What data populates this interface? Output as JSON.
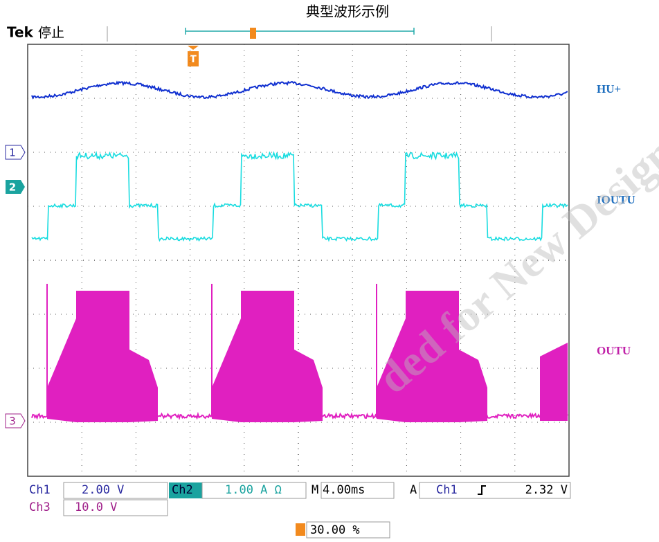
{
  "header": {
    "title": "典型波形示例",
    "brand": "Tek",
    "state": "停止"
  },
  "channel_markers": [
    "1",
    "2",
    "3"
  ],
  "channel_labels": [
    "HU+",
    "IOUTU",
    "OUTU"
  ],
  "status": {
    "ch1": "Ch1",
    "ch1_scale": "2.00 V",
    "ch2": "Ch2",
    "ch2_scale": "1.00 A Ω",
    "timebase_prefix": "M",
    "timebase": "4.00ms",
    "trigger_mode": "A",
    "trigger_source": "Ch1",
    "trigger_level": "2.32 V",
    "ch3": "Ch3",
    "ch3_scale": "10.0 V",
    "trigger_marker": "T",
    "trigger_position": "30.00 %"
  },
  "watermark": "ded for New Design"
}
